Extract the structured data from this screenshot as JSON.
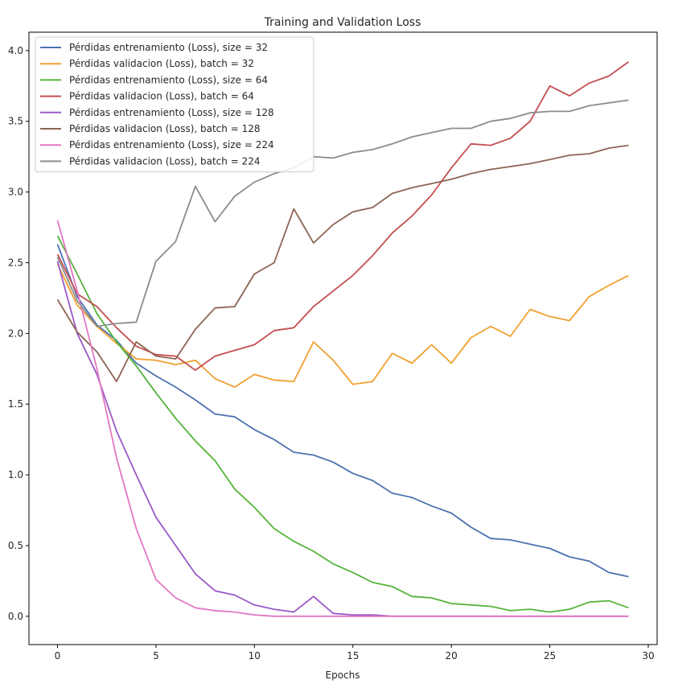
{
  "chart_data": {
    "type": "line",
    "title": "Training and Validation Loss",
    "xlabel": "Epochs",
    "ylabel": "",
    "xlim": [
      -1.45,
      30.45
    ],
    "ylim": [
      -0.2,
      4.13
    ],
    "xticks": [
      0,
      5,
      10,
      15,
      20,
      25,
      30
    ],
    "yticks": [
      0.0,
      0.5,
      1.0,
      1.5,
      2.0,
      2.5,
      3.0,
      3.5,
      4.0
    ],
    "legend_position": "upper-left",
    "grid": false,
    "x": [
      0,
      1,
      2,
      3,
      4,
      5,
      6,
      7,
      8,
      9,
      10,
      11,
      12,
      13,
      14,
      15,
      16,
      17,
      18,
      19,
      20,
      21,
      22,
      23,
      24,
      25,
      26,
      27,
      28,
      29
    ],
    "series": [
      {
        "name": "Pérdidas entrenamiento (Loss), size = 32",
        "color": "#4c72b0",
        "values": [
          2.63,
          2.26,
          2.06,
          1.95,
          1.79,
          1.7,
          1.62,
          1.53,
          1.43,
          1.41,
          1.32,
          1.25,
          1.16,
          1.14,
          1.09,
          1.01,
          0.96,
          0.87,
          0.84,
          0.78,
          0.73,
          0.63,
          0.55,
          0.54,
          0.51,
          0.48,
          0.42,
          0.39,
          0.31,
          0.28
        ]
      },
      {
        "name": "Pérdidas validacion (Loss), batch = 32",
        "color": "#f0a030",
        "values": [
          2.49,
          2.2,
          2.05,
          1.93,
          1.82,
          1.81,
          1.78,
          1.81,
          1.68,
          1.62,
          1.71,
          1.67,
          1.66,
          1.94,
          1.81,
          1.64,
          1.66,
          1.86,
          1.79,
          1.92,
          1.79,
          1.97,
          2.05,
          1.98,
          2.17,
          2.12,
          2.09,
          2.26,
          2.34,
          2.41
        ]
      },
      {
        "name": "Pérdidas entrenamiento (Loss), size = 64",
        "color": "#55b43c",
        "values": [
          2.69,
          2.42,
          2.14,
          1.94,
          1.77,
          1.58,
          1.4,
          1.24,
          1.1,
          0.9,
          0.77,
          0.62,
          0.53,
          0.46,
          0.37,
          0.31,
          0.24,
          0.21,
          0.14,
          0.13,
          0.09,
          0.08,
          0.07,
          0.04,
          0.05,
          0.03,
          0.05,
          0.1,
          0.11,
          0.06
        ]
      },
      {
        "name": "Pérdidas validacion (Loss), batch = 64",
        "color": "#c44e52",
        "values": [
          2.56,
          2.28,
          2.19,
          2.04,
          1.91,
          1.85,
          1.84,
          1.74,
          1.84,
          1.88,
          1.92,
          2.02,
          2.04,
          2.19,
          2.3,
          2.41,
          2.55,
          2.71,
          2.83,
          2.98,
          3.17,
          3.34,
          3.33,
          3.38,
          3.5,
          3.75,
          3.68,
          3.77,
          3.82,
          3.92
        ]
      },
      {
        "name": "Pérdidas entrenamiento (Loss), size = 128",
        "color": "#9b59c6",
        "values": [
          2.51,
          2.0,
          1.71,
          1.31,
          1.0,
          0.7,
          0.5,
          0.3,
          0.18,
          0.15,
          0.08,
          0.05,
          0.03,
          0.14,
          0.02,
          0.01,
          0.01,
          0.0,
          0.0,
          0.0,
          0.0,
          0.0,
          0.0,
          0.0,
          0.0,
          0.0,
          0.0,
          0.0,
          0.0,
          0.0
        ]
      },
      {
        "name": "Pérdidas validacion (Loss), batch = 128",
        "color": "#8c6454",
        "values": [
          2.24,
          2.01,
          1.87,
          1.66,
          1.94,
          1.84,
          1.82,
          2.03,
          2.18,
          2.19,
          2.42,
          2.5,
          2.88,
          2.64,
          2.77,
          2.86,
          2.89,
          2.99,
          3.03,
          3.06,
          3.09,
          3.13,
          3.16,
          3.18,
          3.2,
          3.23,
          3.26,
          3.27,
          3.31,
          3.33
        ]
      },
      {
        "name": "Pérdidas entrenamiento (Loss), size = 224",
        "color": "#e377c2",
        "values": [
          2.8,
          2.3,
          1.75,
          1.12,
          0.62,
          0.26,
          0.13,
          0.06,
          0.04,
          0.03,
          0.01,
          0.0,
          0.0,
          0.0,
          0.0,
          0.0,
          0.0,
          0.0,
          0.0,
          0.0,
          0.0,
          0.0,
          0.0,
          0.0,
          0.0,
          0.0,
          0.0,
          0.0,
          0.0,
          0.0
        ]
      },
      {
        "name": "Pérdidas validacion (Loss), batch = 224",
        "color": "#8c8c8c",
        "values": [
          2.54,
          2.23,
          2.05,
          2.07,
          2.08,
          2.51,
          2.65,
          3.04,
          2.79,
          2.97,
          3.07,
          3.13,
          3.17,
          3.25,
          3.24,
          3.28,
          3.3,
          3.34,
          3.39,
          3.42,
          3.45,
          3.45,
          3.5,
          3.52,
          3.56,
          3.57,
          3.57,
          3.61,
          3.63,
          3.65
        ]
      }
    ]
  }
}
